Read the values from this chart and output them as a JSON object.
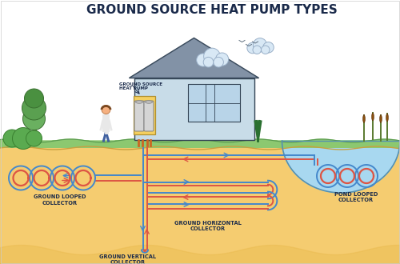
{
  "title": "GROUND SOURCE HEAT PUMP TYPES",
  "title_fontsize": 11,
  "title_fontweight": "bold",
  "bg_color": "#ffffff",
  "ground_color": "#f5cc70",
  "grass_color": "#8cc870",
  "grass_dark": "#5a9950",
  "water_color": "#a8d8f0",
  "water_outline": "#5590b0",
  "blue_pipe": "#4488cc",
  "red_pipe": "#dd5544",
  "house_wall": "#c8dce8",
  "house_roof": "#8898a8",
  "house_outline": "#334455",
  "pump_fill": "#f5d060",
  "pump_outline": "#b09030",
  "label_color": "#1a2a4a",
  "label_fontsize": 4.8,
  "pump_label": "GROUND SOURCE\nHEAT PUMP",
  "labels": {
    "ground_looped": "GROUND LOOPED\nCOLLECTOR",
    "ground_vertical": "GROUND VERTICAL\nCOLLECTOR",
    "ground_horizontal": "GROUND HORIZONTAL\nCOLLECTOR",
    "pond_looped": "POND LOOPED\nCOLLECTOR"
  },
  "lw_pipe": 1.4,
  "lw_pipe_heavy": 1.8
}
